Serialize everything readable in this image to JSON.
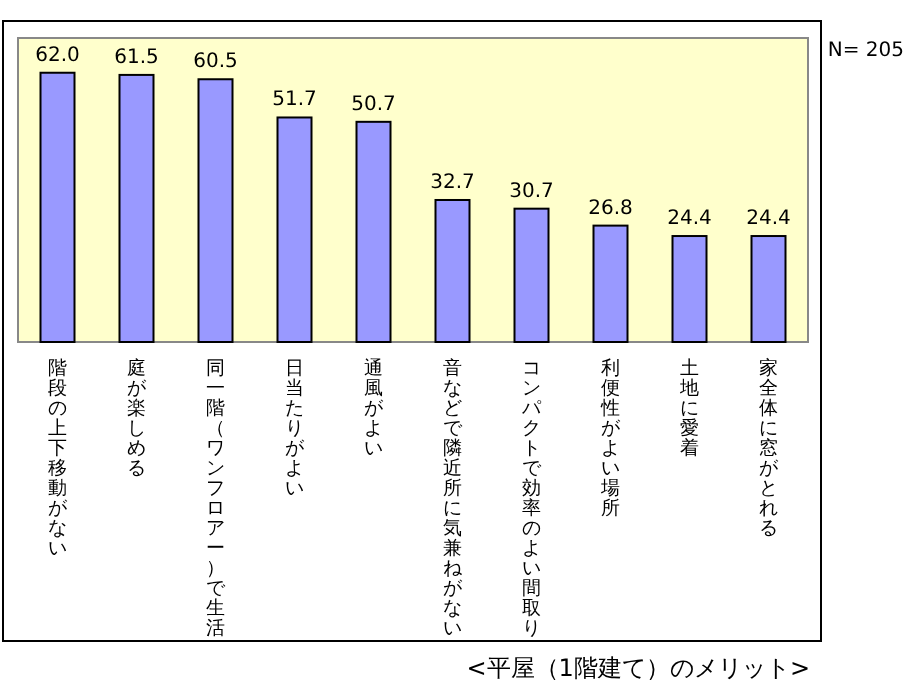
{
  "chart_data": {
    "type": "bar",
    "categories": [
      "階段の上下移動がない",
      "庭が楽しめる",
      "同一階（ワンフロアー）で生活",
      "日当たりがよい",
      "通風がよい",
      "音などで隣近所に気兼ねがない",
      "コンパクトで効率のよい間取り",
      "利便性がよい場所",
      "土地に愛着",
      "家全体に窓がとれる"
    ],
    "values": [
      62.0,
      61.5,
      60.5,
      51.7,
      50.7,
      32.7,
      30.7,
      26.8,
      24.4,
      24.4
    ],
    "value_labels": [
      "62.0",
      "61.5",
      "60.5",
      "51.7",
      "50.7",
      "32.7",
      "30.7",
      "26.8",
      "24.4",
      "24.4"
    ],
    "color": "#9999ff",
    "ylim": [
      0,
      70
    ],
    "tick_labels": "x",
    "annotations": [
      "N= 205",
      "<平屋（1階建て）のメリット>"
    ]
  }
}
